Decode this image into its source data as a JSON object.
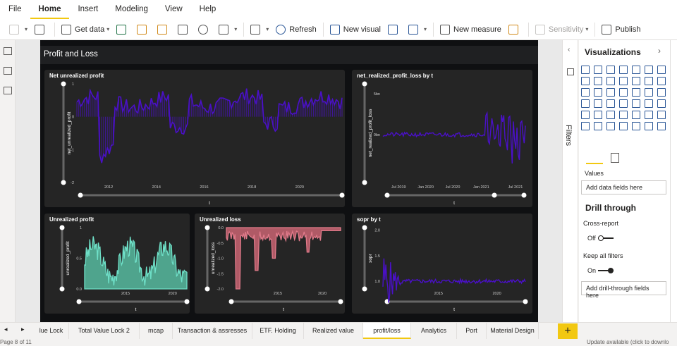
{
  "menu": {
    "tabs": [
      "File",
      "Home",
      "Insert",
      "Modeling",
      "View",
      "Help"
    ],
    "active": "Home"
  },
  "toolbar": {
    "get_data": "Get data",
    "refresh": "Refresh",
    "new_visual": "New visual",
    "new_measure": "New measure",
    "sensitivity": "Sensitivity",
    "publish": "Publish"
  },
  "report": {
    "title": "Profit and  Loss"
  },
  "visuals": [
    {
      "key": "v1",
      "title": "Net unrealized profit",
      "ylabel": "net_unrealized_profit",
      "xlabel": "t",
      "yticks": [
        "1",
        "0",
        "-1",
        "-2"
      ],
      "xticks": [
        "2012",
        "2014",
        "2016",
        "2018",
        "2020"
      ],
      "color": "#4a10c8",
      "ylim": [
        -2,
        1
      ]
    },
    {
      "key": "v2",
      "title": "net_realized_profit_loss by t",
      "ylabel": "net_realized_profit_loss",
      "xlabel": "t",
      "yticks": [
        "5bn",
        "0bn"
      ],
      "xticks": [
        "Jul 2019",
        "Jan 2020",
        "Jul 2020",
        "Jan 2021",
        "Jul 2021"
      ],
      "color": "#4a10c8"
    },
    {
      "key": "v3",
      "title": "Unrealized profit",
      "ylabel": "unrealized_profit",
      "xlabel": "t",
      "yticks": [
        "1",
        "0.5",
        "0.0"
      ],
      "xticks": [
        "2015",
        "2020"
      ],
      "color": "#6fe0c8",
      "ylim": [
        0,
        1
      ]
    },
    {
      "key": "v4",
      "title": "Unrealized loss",
      "ylabel": "unrealized_loss",
      "xlabel": "t",
      "yticks": [
        "0.0",
        "-0.5",
        "-1.0",
        "-1.5",
        "-2.0"
      ],
      "xticks": [
        "2015",
        "2020"
      ],
      "color": "#e07a8a",
      "ylim": [
        -2,
        0
      ]
    },
    {
      "key": "v5",
      "title": "sopr by t",
      "ylabel": "sopr",
      "xlabel": "t",
      "yticks": [
        "2.0",
        "1.5",
        "1.0"
      ],
      "xticks": [
        "2015",
        "2020"
      ],
      "color": "#4a10c8"
    }
  ],
  "filters": {
    "label": "Filters"
  },
  "viz": {
    "title": "Visualizations",
    "values": "Values",
    "add_data": "Add data fields here",
    "drill": "Drill through",
    "cross_report": "Cross-report",
    "off": "Off",
    "keep_filters": "Keep all filters",
    "on": "On",
    "add_drill": "Add drill-through fields here"
  },
  "pages": {
    "tabs": [
      "lue Lock",
      "Total Value Lock 2",
      "mcap",
      "Transaction & assresses",
      "ETF. Holding",
      "Realized value",
      "profit/loss",
      "Analytics",
      "Port",
      "Material Design"
    ],
    "active": "profit/loss",
    "add": "+"
  },
  "status": {
    "page": "Page 8 of 11",
    "update": "Update available (click to downlo"
  }
}
